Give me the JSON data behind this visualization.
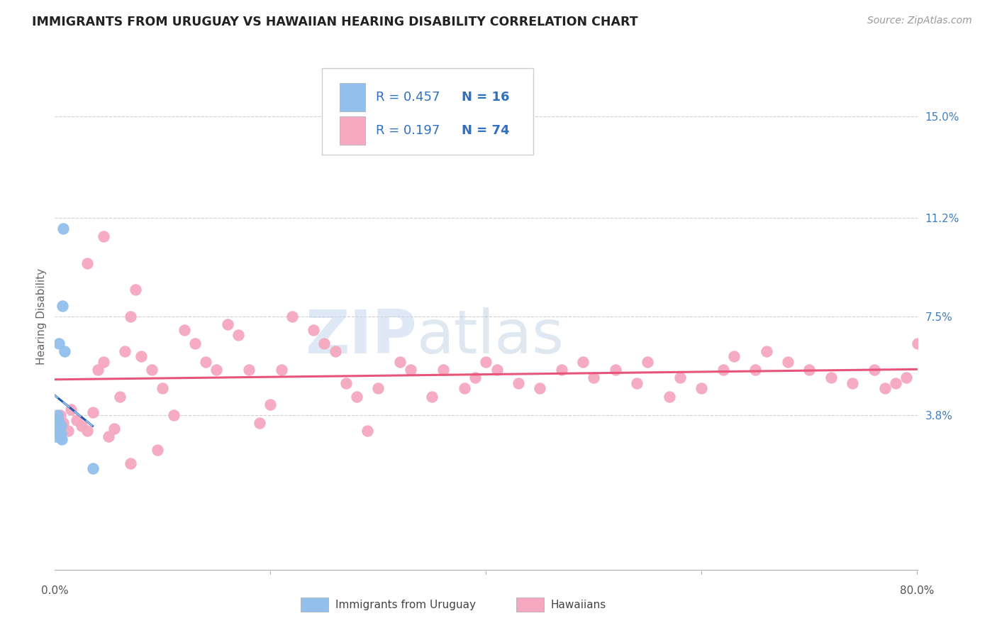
{
  "title": "IMMIGRANTS FROM URUGUAY VS HAWAIIAN HEARING DISABILITY CORRELATION CHART",
  "source": "Source: ZipAtlas.com",
  "ylabel": "Hearing Disability",
  "ytick_values": [
    3.8,
    7.5,
    11.2,
    15.0
  ],
  "xlim": [
    0.0,
    80.0
  ],
  "ylim": [
    -2.0,
    17.0
  ],
  "legend_r_blue": "R = 0.457",
  "legend_n_blue": "N = 16",
  "legend_r_pink": "R = 0.197",
  "legend_n_pink": "N = 74",
  "blue_color": "#92bfec",
  "pink_color": "#f5a8c0",
  "blue_line_color": "#1a5ca8",
  "pink_line_color": "#e8557a",
  "blue_scatter_x": [
    0.1,
    0.15,
    0.2,
    0.25,
    0.3,
    0.35,
    0.4,
    0.45,
    0.5,
    0.55,
    0.6,
    0.65,
    0.7,
    0.8,
    0.9,
    3.5
  ],
  "blue_scatter_y": [
    3.0,
    3.2,
    3.5,
    3.8,
    3.6,
    3.2,
    6.5,
    3.3,
    3.0,
    3.4,
    3.1,
    2.9,
    7.9,
    10.8,
    6.2,
    1.8
  ],
  "pink_scatter_x": [
    0.5,
    0.8,
    1.2,
    1.5,
    2.0,
    2.5,
    3.0,
    3.5,
    4.0,
    4.5,
    5.0,
    5.5,
    6.0,
    6.5,
    7.0,
    7.5,
    8.0,
    9.0,
    10.0,
    11.0,
    12.0,
    13.0,
    14.0,
    15.0,
    16.0,
    17.0,
    18.0,
    19.0,
    20.0,
    21.0,
    22.0,
    24.0,
    25.0,
    26.0,
    27.0,
    28.0,
    29.0,
    30.0,
    32.0,
    33.0,
    35.0,
    36.0,
    38.0,
    39.0,
    40.0,
    41.0,
    43.0,
    45.0,
    47.0,
    49.0,
    50.0,
    52.0,
    54.0,
    55.0,
    57.0,
    58.0,
    60.0,
    62.0,
    63.0,
    65.0,
    66.0,
    68.0,
    70.0,
    72.0,
    74.0,
    76.0,
    77.0,
    78.0,
    79.0,
    80.0,
    3.0,
    4.5,
    7.0,
    9.5
  ],
  "pink_scatter_y": [
    3.8,
    3.5,
    3.2,
    4.0,
    3.6,
    3.4,
    3.2,
    3.9,
    5.5,
    5.8,
    3.0,
    3.3,
    4.5,
    6.2,
    7.5,
    8.5,
    6.0,
    5.5,
    4.8,
    3.8,
    7.0,
    6.5,
    5.8,
    5.5,
    7.2,
    6.8,
    5.5,
    3.5,
    4.2,
    5.5,
    7.5,
    7.0,
    6.5,
    6.2,
    5.0,
    4.5,
    3.2,
    4.8,
    5.8,
    5.5,
    4.5,
    5.5,
    4.8,
    5.2,
    5.8,
    5.5,
    5.0,
    4.8,
    5.5,
    5.8,
    5.2,
    5.5,
    5.0,
    5.8,
    4.5,
    5.2,
    4.8,
    5.5,
    6.0,
    5.5,
    6.2,
    5.8,
    5.5,
    5.2,
    5.0,
    5.5,
    4.8,
    5.0,
    5.2,
    6.5,
    9.5,
    10.5,
    2.0,
    2.5
  ],
  "watermark_zip": "ZIP",
  "watermark_atlas": "atlas",
  "title_fontsize": 12.5,
  "tick_fontsize": 11
}
